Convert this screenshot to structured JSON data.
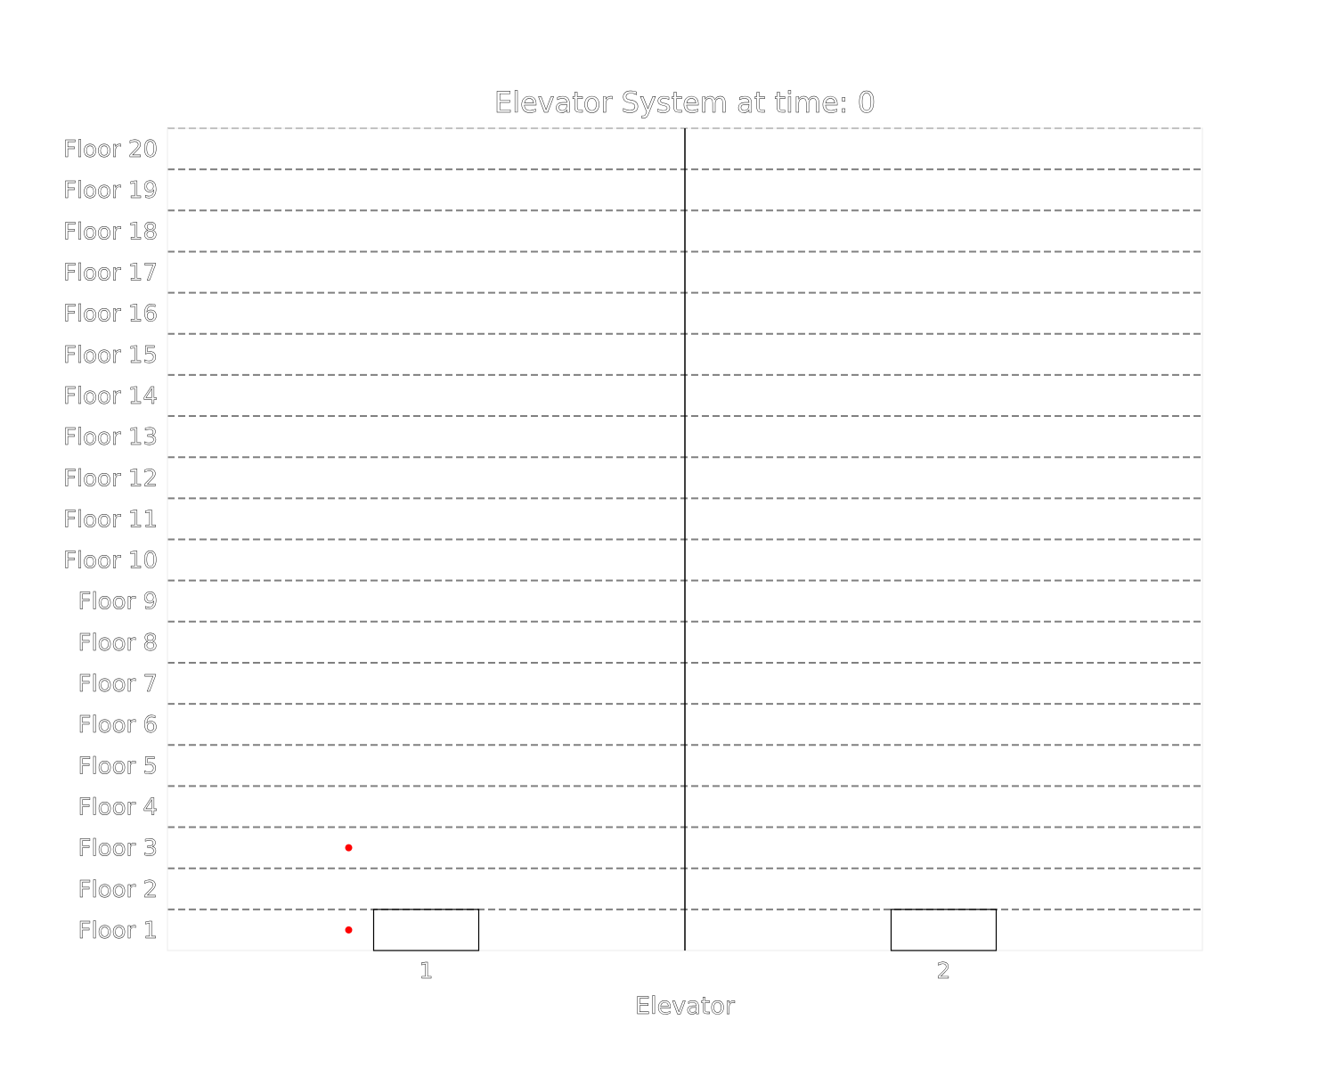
{
  "chart_data": {
    "type": "scatter",
    "title": "Elevator System at time: 0",
    "xlabel": "Elevator",
    "ylabel": "",
    "x_categories": [
      "1",
      "2"
    ],
    "y_tick_labels": [
      "Floor 1",
      "Floor 2",
      "Floor 3",
      "Floor 4",
      "Floor 5",
      "Floor 6",
      "Floor 7",
      "Floor 8",
      "Floor 9",
      "Floor 10",
      "Floor 11",
      "Floor 12",
      "Floor 13",
      "Floor 14",
      "Floor 15",
      "Floor 16",
      "Floor 17",
      "Floor 18",
      "Floor 19",
      "Floor 20"
    ],
    "ylim": [
      1,
      20
    ],
    "elevators": [
      {
        "elevator": 1,
        "floor": 1
      },
      {
        "elevator": 2,
        "floor": 1
      }
    ],
    "waiting_passengers": [
      {
        "elevator": 1,
        "floor": 1
      },
      {
        "elevator": 1,
        "floor": 3
      }
    ],
    "grid": "horizontal dashed",
    "colors": {
      "passenger": "#ff0000",
      "floor_line": "#808080",
      "frame": "#000000"
    }
  }
}
